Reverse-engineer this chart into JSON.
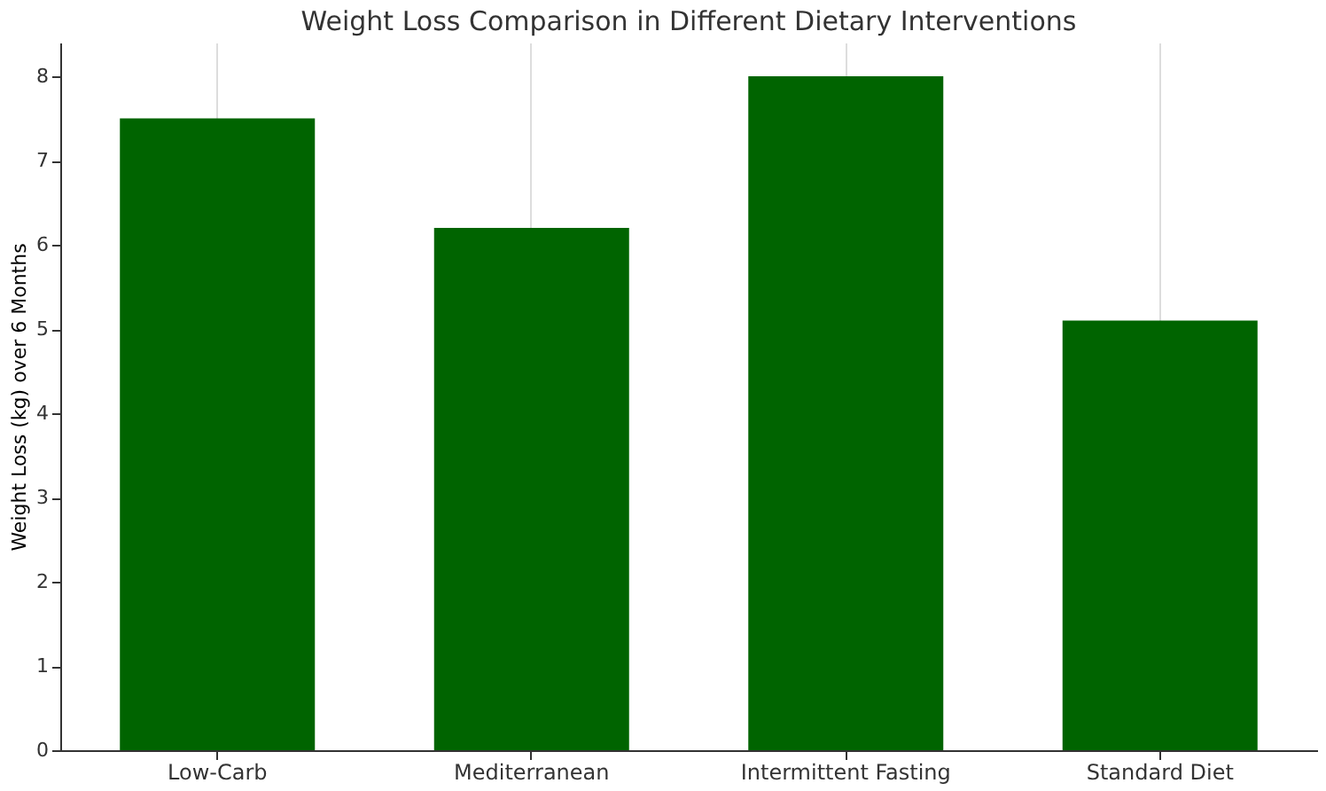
{
  "chart_data": {
    "type": "bar",
    "title": "Weight Loss Comparison in Different Dietary Interventions",
    "ylabel": "Weight Loss (kg) over 6 Months",
    "categories": [
      "Low-Carb",
      "Mediterranean",
      "Intermittent Fasting",
      "Standard Diet"
    ],
    "values": [
      7.5,
      6.2,
      8.0,
      5.1
    ],
    "color": "#006400",
    "ylim": [
      0,
      8.4
    ],
    "yticks": [
      0,
      1,
      2,
      3,
      4,
      5,
      6,
      7,
      8
    ],
    "grid": "x"
  }
}
